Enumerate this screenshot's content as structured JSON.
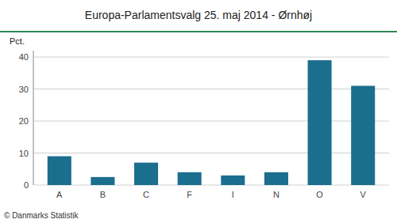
{
  "chart_data": {
    "type": "bar",
    "title": "Europa-Parlamentsvalg 25. maj 2014 - Ørnhøj",
    "categories": [
      "A",
      "B",
      "C",
      "F",
      "I",
      "N",
      "O",
      "V"
    ],
    "values": [
      9.0,
      2.5,
      7.0,
      4.0,
      3.0,
      4.0,
      39.0,
      31.0
    ],
    "color": "#1a6e8e",
    "ylabel": "Pct.",
    "footer": "© Danmarks Statistik",
    "ylim": [
      0,
      42
    ],
    "yticks": [
      0,
      10,
      20,
      30,
      40
    ],
    "grid": true
  }
}
